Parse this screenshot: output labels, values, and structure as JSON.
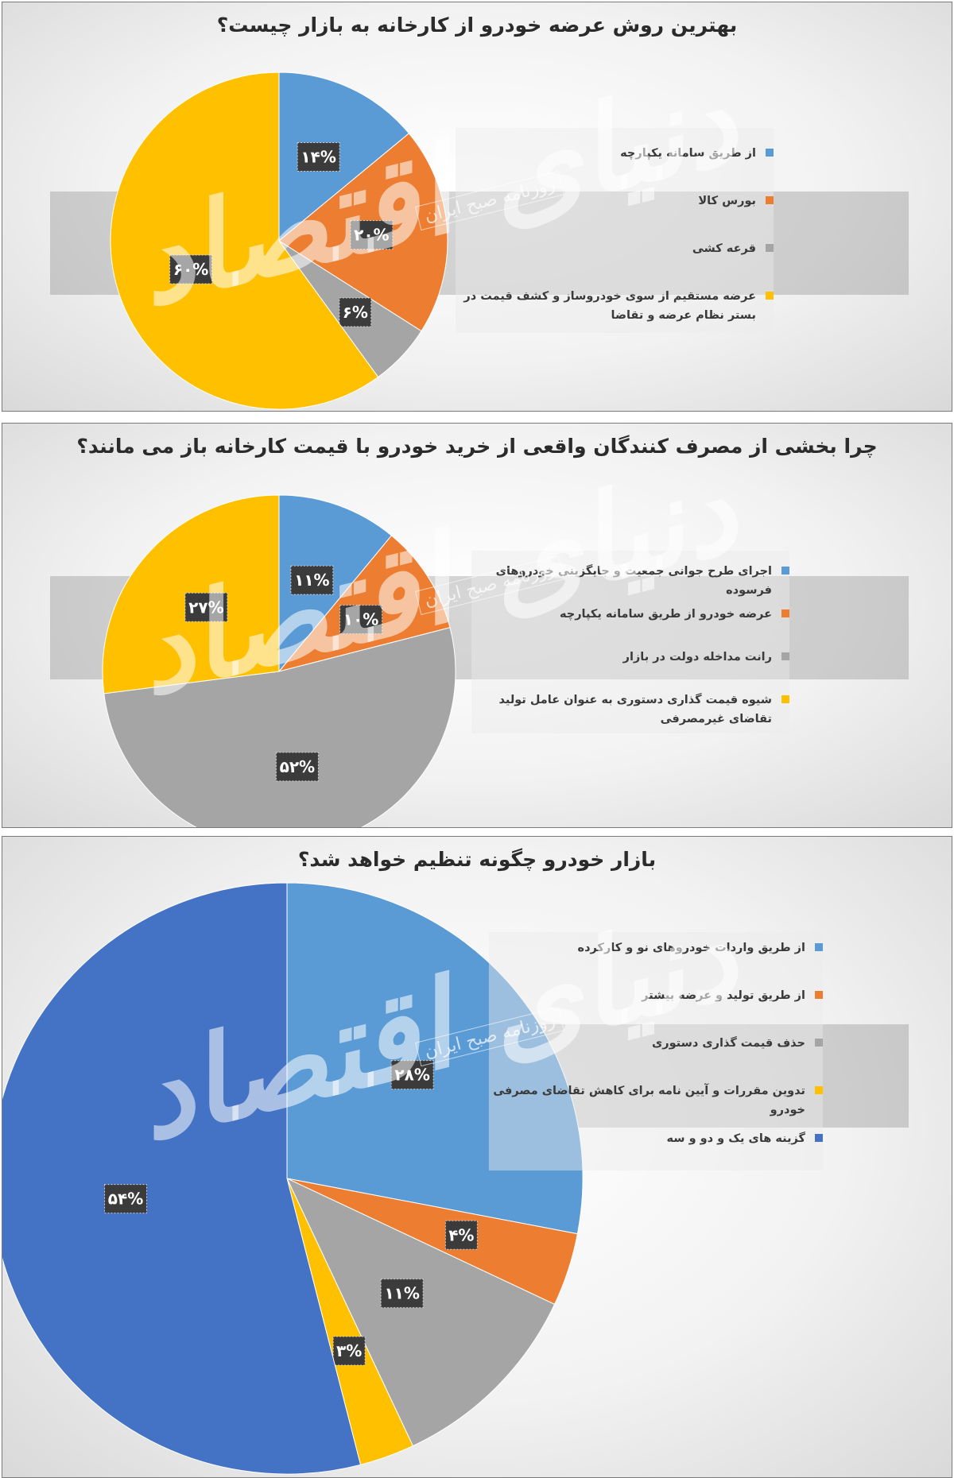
{
  "watermark": {
    "brand": "دنیای اقتصاد",
    "newspaper": "روزنامه صبح ایران"
  },
  "chart_data": [
    {
      "type": "pie",
      "title": "بهترین روش عرضه خودرو از کارخانه به بازار چیست؟",
      "categories": [
        "از طریق سامانه یکپارچه",
        "بورس کالا",
        "قرعه کشی",
        "عرضه مستقیم از سوی خودروساز و کشف قیمت در بستر نظام عرضه و تقاضا"
      ],
      "values": [
        14,
        20,
        6,
        60
      ],
      "labels": [
        "۱۴%",
        "۲۰%",
        "۶%",
        "۶۰%"
      ],
      "colors": [
        "#5b9bd5",
        "#ed7d31",
        "#a5a5a5",
        "#ffc000"
      ],
      "legend_position": "right"
    },
    {
      "type": "pie",
      "title": "چرا بخشی از مصرف کنندگان واقعی از خرید خودرو با قیمت کارخانه باز می مانند؟",
      "categories": [
        "اجرای طرح جوانی جمعیت و جایگزینی خودروهای فرسوده",
        "عرضه خودرو از طریق سامانه یکپارچه",
        "رانت مداخله دولت در بازار",
        "شیوه قیمت گذاری دستوری به عنوان عامل تولید تقاضای غیرمصرفی"
      ],
      "values": [
        11,
        10,
        52,
        27
      ],
      "labels": [
        "۱۱%",
        "۱۰%",
        "۵۲%",
        "۲۷%"
      ],
      "colors": [
        "#5b9bd5",
        "#ed7d31",
        "#a5a5a5",
        "#ffc000"
      ],
      "legend_position": "right"
    },
    {
      "type": "pie",
      "title": "بازار خودرو چگونه تنظیم خواهد شد؟",
      "categories": [
        "از طریق واردات خودروهای نو و کارکرده",
        "از طریق تولید و عرضه بیشتر",
        "حذف قیمت گذاری دستوری",
        "تدوین مقررات و آیین نامه برای کاهش تقاضای مصرفی خودرو",
        "گزینه های یک و دو و سه"
      ],
      "values": [
        28,
        4,
        11,
        3,
        54
      ],
      "labels": [
        "۲۸%",
        "۴%",
        "۱۱%",
        "۳%",
        "۵۴%"
      ],
      "colors": [
        "#5b9bd5",
        "#ed7d31",
        "#a5a5a5",
        "#ffc000",
        "#4472c4"
      ],
      "legend_position": "right"
    }
  ]
}
